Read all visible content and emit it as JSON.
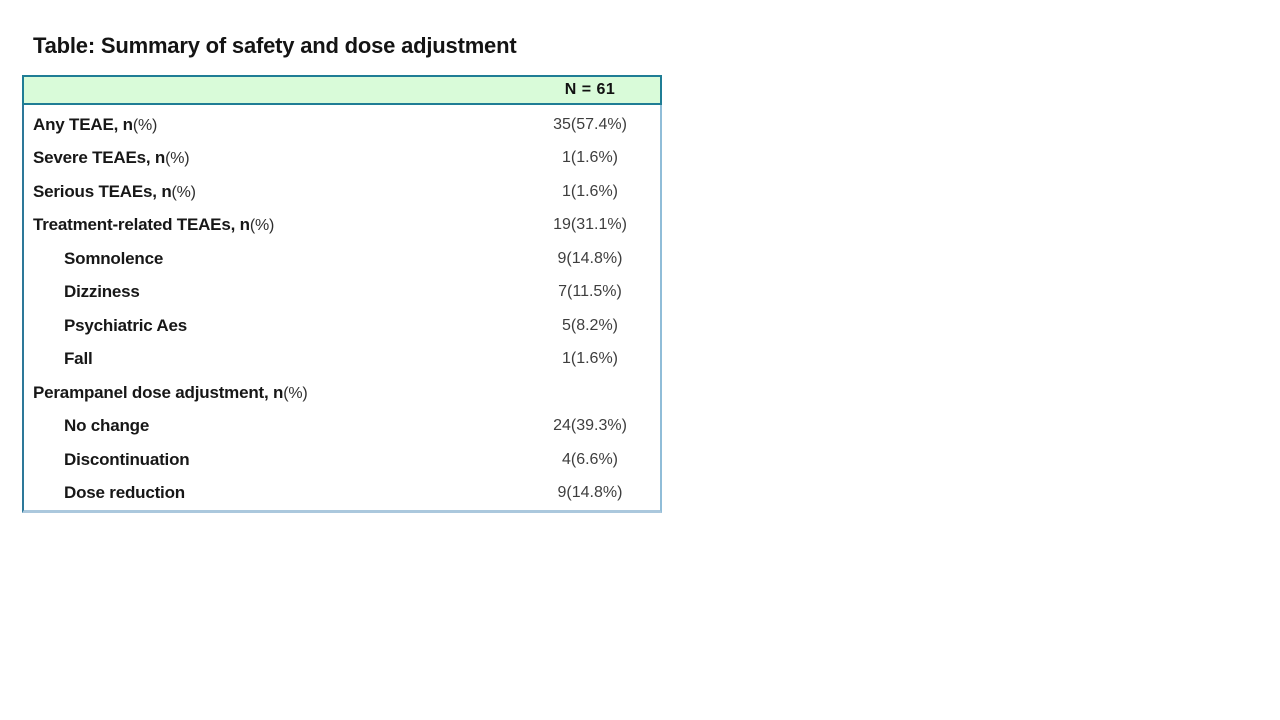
{
  "title": "Table: Summary of safety and dose adjustment",
  "table": {
    "header": {
      "n_label": "N = 61"
    },
    "rows": [
      {
        "label": "Any TEAE, n",
        "suffix": "(%)",
        "value": "35(57.4%)",
        "indent": false
      },
      {
        "label": "Severe TEAEs, n",
        "suffix": "(%)",
        "value": "1(1.6%)",
        "indent": false
      },
      {
        "label": "Serious TEAEs, n",
        "suffix": "(%)",
        "value": "1(1.6%)",
        "indent": false
      },
      {
        "label": "Treatment-related TEAEs, n",
        "suffix": "(%)",
        "value": "19(31.1%)",
        "indent": false
      },
      {
        "label": "Somnolence",
        "suffix": "",
        "value": "9(14.8%)",
        "indent": true
      },
      {
        "label": "Dizziness",
        "suffix": "",
        "value": "7(11.5%)",
        "indent": true
      },
      {
        "label": "Psychiatric Aes",
        "suffix": "",
        "value": "5(8.2%)",
        "indent": true
      },
      {
        "label": "Fall",
        "suffix": "",
        "value": "1(1.6%)",
        "indent": true
      },
      {
        "label": "Perampanel dose adjustment, n",
        "suffix": "(%)",
        "value": "",
        "indent": false
      },
      {
        "label": "No change",
        "suffix": "",
        "value": "24(39.3%)",
        "indent": true
      },
      {
        "label": "Discontinuation",
        "suffix": "",
        "value": "4(6.6%)",
        "indent": true
      },
      {
        "label": "Dose reduction",
        "suffix": "",
        "value": "9(14.8%)",
        "indent": true
      }
    ],
    "colors": {
      "header_bg": "#d9fbd9",
      "header_border": "#1f7d95",
      "body_border_left": "#2d7899",
      "body_border_right": "#90bdd8",
      "body_border_bottom": "#abc8dd"
    }
  }
}
